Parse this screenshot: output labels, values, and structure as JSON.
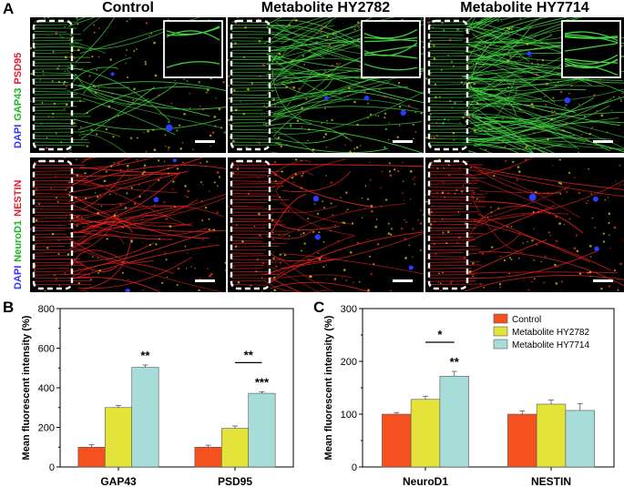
{
  "panel_letters": {
    "a": "A",
    "b": "B",
    "c": "C"
  },
  "column_titles": [
    "Control",
    "Metabolite HY2782",
    "Metabolite HY7714"
  ],
  "row_labels": {
    "row1": [
      {
        "text": "DAPI",
        "color": "#3333ff"
      },
      {
        "text": "GAP43",
        "color": "#1db51d"
      },
      {
        "text": "PSD95",
        "color": "#e0202a"
      }
    ],
    "row2": [
      {
        "text": "DAPI",
        "color": "#3333ff"
      },
      {
        "text": "NeuroD1",
        "color": "#1db51d"
      },
      {
        "text": "NESTIN",
        "color": "#e0202a"
      }
    ]
  },
  "colors": {
    "control": "#f4511e",
    "hy2782": "#e4e33a",
    "hy7714": "#a7ddd8",
    "green_stain": "#3fd13f",
    "red_stain": "#e8221f"
  },
  "chart_data": [
    {
      "type": "bar",
      "panel": "B",
      "categories": [
        "GAP43",
        "PSD95"
      ],
      "ylabel": "Mean fluorescent intensity (%)",
      "xlabel": "",
      "ylim": [
        0,
        800
      ],
      "yticks": [
        "0",
        "200",
        "400",
        "600",
        "800"
      ],
      "series": [
        {
          "values": [
            100,
            100
          ],
          "errors": [
            12,
            10
          ]
        },
        {
          "values": [
            300,
            195
          ],
          "errors": [
            10,
            12
          ]
        },
        {
          "values": [
            503,
            372
          ],
          "errors": [
            12,
            8
          ]
        }
      ],
      "annotations": [
        {
          "text": "**",
          "category": 0,
          "series": 2
        },
        {
          "text": "***",
          "category": 1,
          "series": 2
        },
        {
          "text": "**",
          "category": 1,
          "bracket": [
            1,
            2
          ]
        }
      ]
    },
    {
      "type": "bar",
      "panel": "C",
      "categories": [
        "NeuroD1",
        "NESTIN"
      ],
      "ylabel": "Mean fluorescent intensity (%)",
      "xlabel": "",
      "ylim": [
        0,
        300
      ],
      "yticks": [
        "0",
        "100",
        "200",
        "300"
      ],
      "series": [
        {
          "name": "Control",
          "values": [
            100,
            100
          ],
          "errors": [
            3,
            6
          ]
        },
        {
          "name": "Metabolite HY2782",
          "values": [
            128,
            119
          ],
          "errors": [
            6,
            8
          ]
        },
        {
          "name": "Metabolite HY7714",
          "values": [
            172,
            107
          ],
          "errors": [
            9,
            13
          ]
        }
      ],
      "legend": "top-right",
      "annotations": [
        {
          "text": "**",
          "category": 0,
          "series": 2
        },
        {
          "text": "*",
          "category": 0,
          "bracket": [
            1,
            2
          ]
        }
      ]
    }
  ]
}
